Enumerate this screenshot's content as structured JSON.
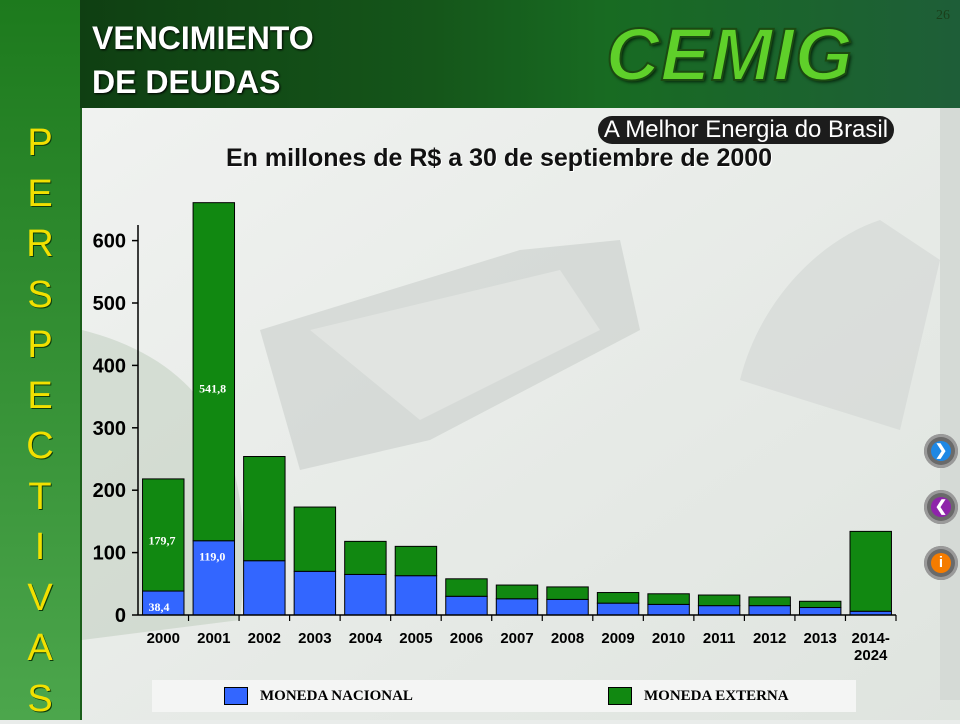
{
  "page_number": "26",
  "title_lines": [
    "VENCIMIENTO",
    "DE DEUDAS"
  ],
  "sidebar_letters": [
    "P",
    "E",
    "R",
    "S",
    "P",
    "E",
    "C",
    "T",
    "I",
    "V",
    "A",
    "S"
  ],
  "logo_text": "CEMIG",
  "slogan": "A Melhor Energia do Brasil",
  "colors": {
    "nacional": "#3366ff",
    "externa": "#118811",
    "sidebar_text": "#f2e000",
    "banner": "#15561a"
  },
  "nav_buttons": [
    {
      "icon": "arrow-right-icon",
      "glyph": "❯"
    },
    {
      "icon": "arrow-left-icon",
      "glyph": "❮"
    },
    {
      "icon": "info-icon",
      "glyph": "i"
    }
  ],
  "chart_data": {
    "type": "bar",
    "stacked": true,
    "title": "En millones de R$ a 30 de septiembre de 2000",
    "categories": [
      "2000",
      "2001",
      "2002",
      "2003",
      "2004",
      "2005",
      "2006",
      "2007",
      "2008",
      "2009",
      "2010",
      "2011",
      "2012",
      "2013",
      "2014-\n2024"
    ],
    "category_lines": [
      [
        "2000"
      ],
      [
        "2001"
      ],
      [
        "2002"
      ],
      [
        "2003"
      ],
      [
        "2004"
      ],
      [
        "2005"
      ],
      [
        "2006"
      ],
      [
        "2007"
      ],
      [
        "2008"
      ],
      [
        "2009"
      ],
      [
        "2010"
      ],
      [
        "2011"
      ],
      [
        "2012"
      ],
      [
        "2013"
      ],
      [
        "2014-",
        "2024"
      ]
    ],
    "series": [
      {
        "name": "MONEDA NACIONAL",
        "values": [
          38.4,
          119.0,
          87,
          70,
          65,
          63,
          30,
          26,
          25,
          19,
          17,
          15,
          15,
          12,
          6
        ]
      },
      {
        "name": "MONEDA EXTERNA",
        "values": [
          179.7,
          541.8,
          167,
          103,
          53,
          47,
          28,
          22,
          20,
          17,
          17,
          17,
          14,
          10,
          128
        ]
      }
    ],
    "data_labels": [
      {
        "category": 0,
        "series": 0,
        "text": "38,4"
      },
      {
        "category": 0,
        "series": 1,
        "text": "179,7"
      },
      {
        "category": 1,
        "series": 0,
        "text": "119,0"
      },
      {
        "category": 1,
        "series": 1,
        "text": "541,8"
      }
    ],
    "yticks": [
      0,
      100,
      200,
      300,
      400,
      500,
      600
    ],
    "ylim": [
      0,
      625
    ],
    "legend_position": "bottom"
  }
}
